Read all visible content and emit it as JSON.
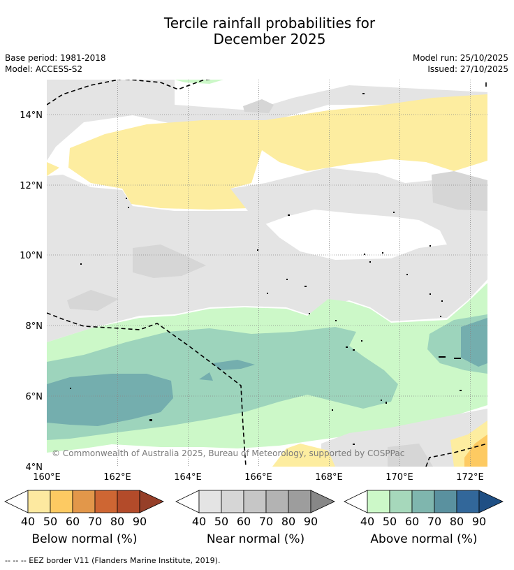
{
  "title": {
    "line1": "Tercile rainfall probabilities for",
    "line2": "December 2025"
  },
  "meta": {
    "base_period": "Base period: 1981-2018",
    "model": "Model: ACCESS-S2",
    "model_run": "Model run: 25/10/2025",
    "issued": "Issued: 27/10/2025"
  },
  "map": {
    "lon_labels": [
      "160°E",
      "162°E",
      "164°E",
      "166°E",
      "168°E",
      "170°E",
      "172°E"
    ],
    "lat_labels": [
      "4°N",
      "6°N",
      "8°N",
      "10°N",
      "12°N",
      "14°N"
    ],
    "copyright": "© Commonwealth of Australia 2025, Bureau of Meteorology, supported by COSPPac",
    "colors": {
      "below_40": "#fdeda0",
      "near_40": "#e4e4e4",
      "near_50": "#d6d6d6",
      "above_40": "#ccf8c8",
      "above_50": "#9dd4bc",
      "above_60": "#74aeae",
      "border": "#000000"
    }
  },
  "colorbars": [
    {
      "label": "Below normal (%)",
      "ticks": [
        "40",
        "50",
        "60",
        "70",
        "80",
        "90"
      ],
      "colors": [
        "#fde9a0",
        "#fdca62",
        "#e2974a",
        "#ce6633",
        "#b34b2a",
        "#963f28"
      ]
    },
    {
      "label": "Near normal (%)",
      "ticks": [
        "40",
        "50",
        "60",
        "70",
        "80",
        "90"
      ],
      "colors": [
        "#e4e4e4",
        "#d6d6d6",
        "#c6c6c6",
        "#b3b3b3",
        "#9d9d9d",
        "#878787"
      ]
    },
    {
      "label": "Above normal (%)",
      "ticks": [
        "40",
        "50",
        "60",
        "70",
        "80",
        "90"
      ],
      "colors": [
        "#ccf8c8",
        "#a6d8bb",
        "#7fb6ae",
        "#5a919f",
        "#32679a",
        "#1f4f84"
      ]
    }
  ],
  "footer": "--  --  -- EEZ border V11 (Flanders Marine Institute, 2019)."
}
